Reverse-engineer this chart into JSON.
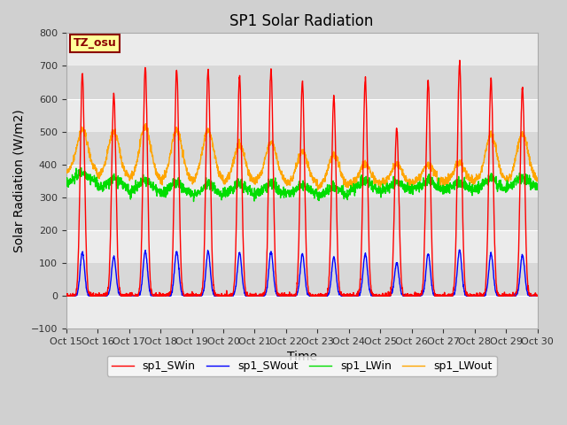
{
  "title": "SP1 Solar Radiation",
  "ylabel": "Solar Radiation (W/m2)",
  "xlabel": "Time",
  "ylim": [
    -100,
    800
  ],
  "yticks": [
    -100,
    0,
    100,
    200,
    300,
    400,
    500,
    600,
    700,
    800
  ],
  "xtick_labels": [
    "Oct 15",
    "Oct 16",
    "Oct 17",
    "Oct 18",
    "Oct 19",
    "Oct 20",
    "Oct 21",
    "Oct 22",
    "Oct 23",
    "Oct 24",
    "Oct 25",
    "Oct 26",
    "Oct 27",
    "Oct 28",
    "Oct 29",
    "Oct 30"
  ],
  "legend_labels": [
    "sp1_SWin",
    "sp1_SWout",
    "sp1_LWin",
    "sp1_LWout"
  ],
  "colors": {
    "SWin": "#ff0000",
    "SWout": "#0000ff",
    "LWin": "#00dd00",
    "LWout": "#ffa500"
  },
  "tz_label": "TZ_osu",
  "fig_bg": "#d0d0d0",
  "plot_bg": "#ebebeb",
  "band_color": "#d8d8d8",
  "title_fontsize": 12,
  "label_fontsize": 10,
  "tick_fontsize": 8
}
